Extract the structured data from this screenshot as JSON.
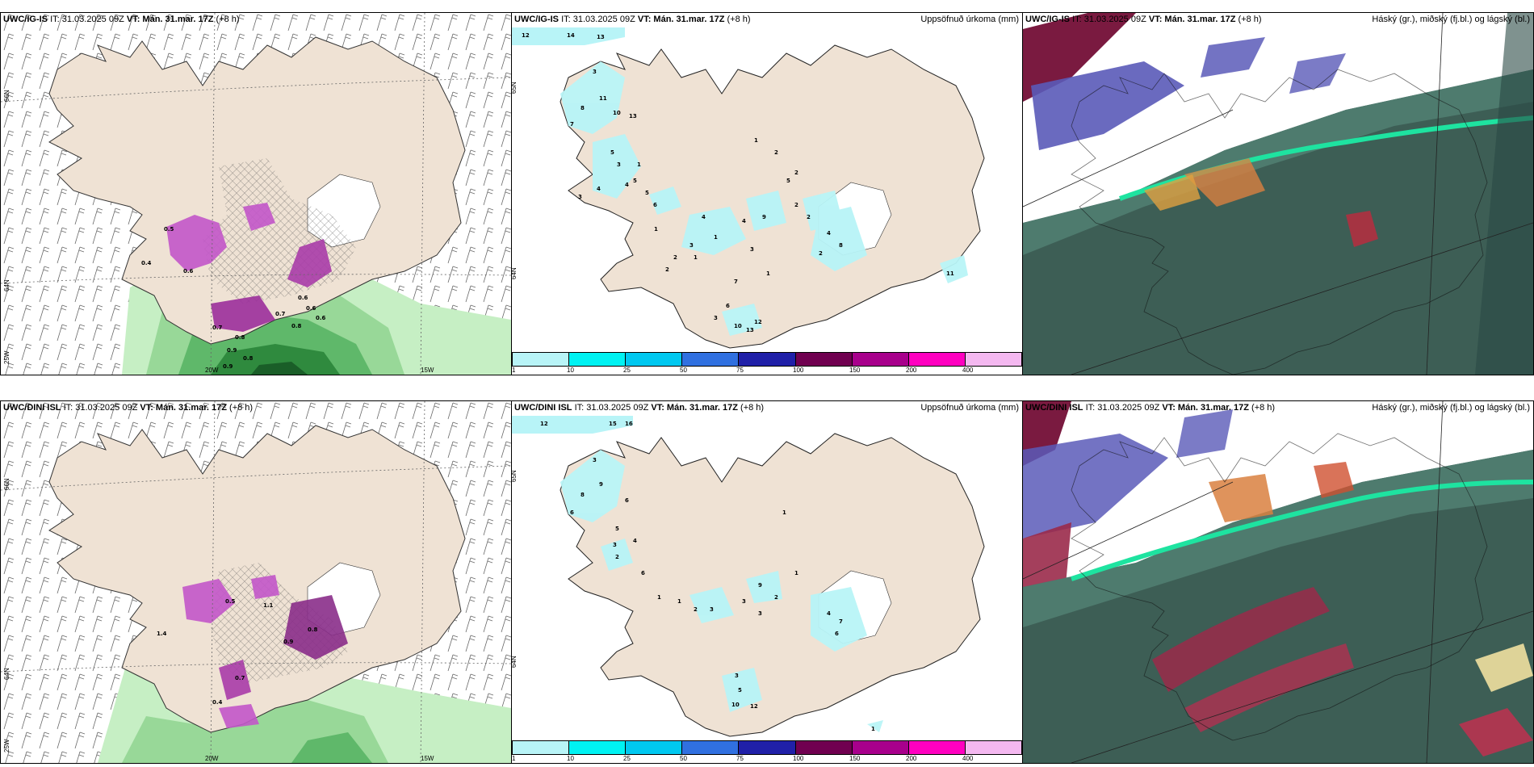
{
  "rows": [
    {
      "model_label": "UWC/IG-IS",
      "init_label": "IT: 31.03.2025 09Z",
      "valid_label": "VT: Mán. 31.mar. 17Z",
      "lead_label": "(+8 h)",
      "precip_numbers": [
        "12",
        "14",
        "13",
        "3",
        "11",
        "10",
        "13",
        "8",
        "7",
        "5",
        "3",
        "1",
        "5",
        "5",
        "6",
        "4",
        "3",
        "4",
        "1",
        "1",
        "2",
        "2",
        "9",
        "2",
        "4",
        "4",
        "1",
        "3",
        "2",
        "2",
        "7",
        "3",
        "1",
        "8",
        "4",
        "11",
        "6",
        "3",
        "1",
        "2",
        "10",
        "13",
        "12",
        "2",
        "5"
      ],
      "wind_numbers": [
        "0.5",
        "0.4",
        "0.6",
        "0.6",
        "0.7",
        "0.8",
        "0.9",
        "0.8",
        "0.6",
        "0.7",
        "0.8",
        "0.9",
        "0.6"
      ]
    },
    {
      "model_label": "UWC/DINI ISL",
      "init_label": "IT: 31.03.2025 09Z",
      "valid_label": "VT: Mán. 31.mar. 17Z",
      "lead_label": "(+8 h)",
      "precip_numbers": [
        "12",
        "15",
        "16",
        "3",
        "9",
        "8",
        "6",
        "6",
        "5",
        "3",
        "2",
        "4",
        "6",
        "1",
        "1",
        "2",
        "3",
        "9",
        "2",
        "3",
        "1",
        "4",
        "7",
        "6",
        "3",
        "5",
        "12",
        "10",
        "1",
        "3",
        "1"
      ],
      "wind_numbers": [
        "1.4",
        "1.1",
        "0.8",
        "0.9",
        "0.5",
        "0.7",
        "0.4"
      ]
    }
  ],
  "precip_title": "Uppsöfnuð úrkoma (mm)",
  "cloud_title": "Háský (gr.), miðský (fj.bl.) og lágský (bl.)",
  "colorbar": {
    "ticks": [
      "1",
      "10",
      "25",
      "50",
      "75",
      "100",
      "150",
      "200",
      "400"
    ],
    "colors": [
      "#b8f4f7",
      "#00f2f2",
      "#00c8f0",
      "#3070e0",
      "#2020a8",
      "#700050",
      "#a8008c",
      "#ff00c0",
      "#f4b8f0"
    ]
  },
  "axis_labels": {
    "lat": [
      "66N",
      "64N",
      "25W"
    ],
    "lon": [
      "20W",
      "15W"
    ],
    "precip_lat": [
      "65N",
      "64N"
    ]
  }
}
